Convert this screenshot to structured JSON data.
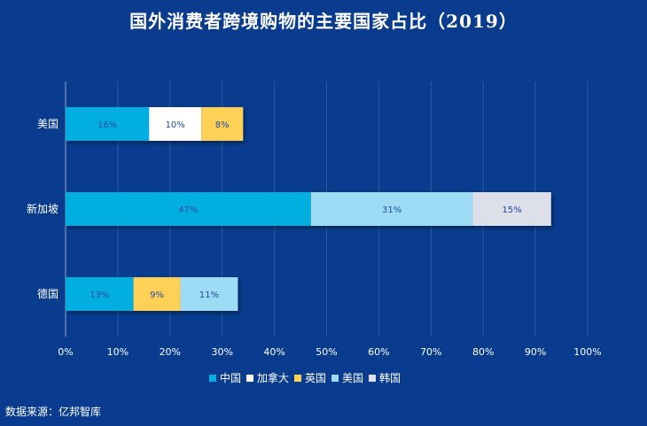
{
  "chart_data": {
    "type": "bar",
    "orientation": "horizontal",
    "stacked": true,
    "title": "国外消费者跨境购物的主要国家占比（2019）",
    "categories": [
      "美国",
      "新加坡",
      "德国"
    ],
    "series": [
      {
        "name": "中国",
        "color": "#00aee0",
        "values": [
          16,
          47,
          13
        ]
      },
      {
        "name": "加拿大",
        "color": "#ffffff",
        "values": [
          10,
          0,
          0
        ]
      },
      {
        "name": "英国",
        "color": "#fdd154",
        "values": [
          8,
          0,
          9
        ]
      },
      {
        "name": "美国",
        "color": "#9ddcf4",
        "values": [
          0,
          31,
          11
        ]
      },
      {
        "name": "韩国",
        "color": "#dde0e8",
        "values": [
          0,
          15,
          0
        ]
      }
    ],
    "value_format": "percent",
    "xlim": [
      0,
      100
    ],
    "xticks": [
      "0%",
      "10%",
      "20%",
      "30%",
      "40%",
      "50%",
      "60%",
      "70%",
      "80%",
      "90%",
      "100%"
    ],
    "grid": true,
    "legend": "bottom",
    "label_color": "#1f4aa5",
    "background": "#093c8e"
  },
  "source": "数据来源：亿邦智库"
}
